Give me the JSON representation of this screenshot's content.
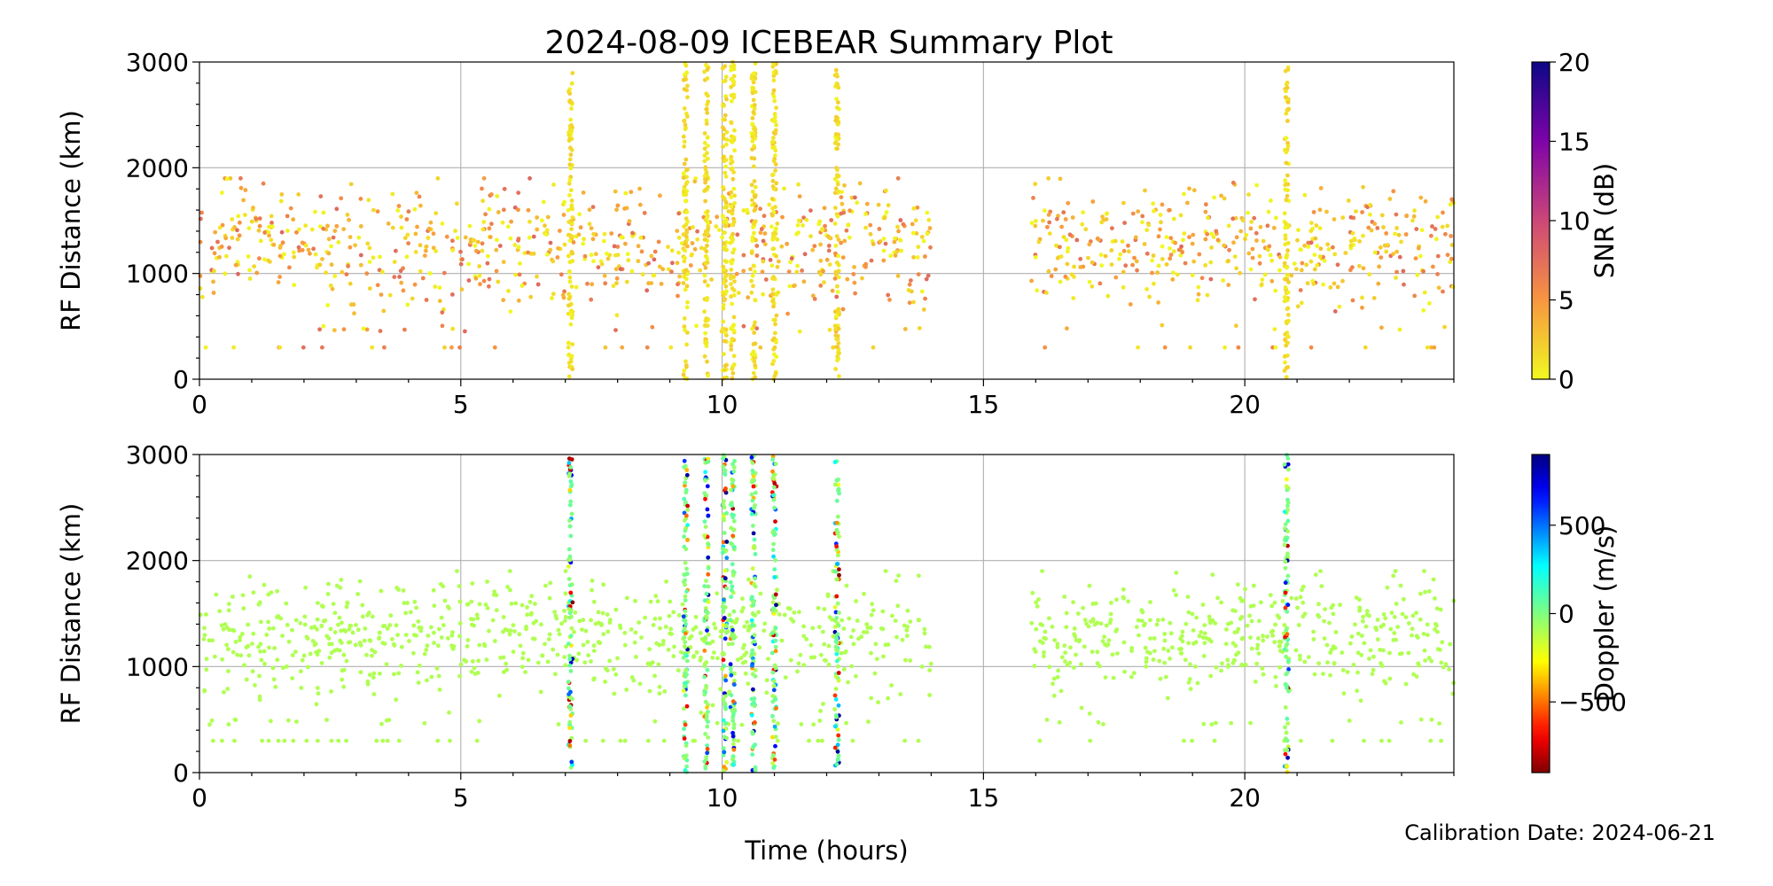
{
  "title": "2024-08-09 ICEBEAR Summary Plot",
  "calibration_note": "Calibration Date: 2024-06-21",
  "chart_data": [
    {
      "type": "scatter",
      "panel": "snr",
      "xlabel": "",
      "ylabel": "RF Distance (km)",
      "xlim": [
        0,
        24
      ],
      "ylim": [
        0,
        3000
      ],
      "xticks": [
        0,
        5,
        10,
        15,
        20
      ],
      "xtick_labels": [
        "0",
        "5",
        "10",
        "15",
        "20"
      ],
      "yticks": [
        0,
        1000,
        2000,
        3000
      ],
      "ytick_labels": [
        "0",
        "1000",
        "2000",
        "3000"
      ],
      "grid": true,
      "colorbar": {
        "label": "SNR (dB)",
        "range": [
          0,
          20
        ],
        "ticks": [
          0,
          5,
          10,
          15,
          20
        ],
        "tick_labels": [
          "0",
          "5",
          "10",
          "15",
          "20"
        ],
        "colormap": "plasma_r"
      },
      "activity_segments": [
        [
          0.0,
          14.0
        ],
        [
          15.9,
          24.0
        ]
      ],
      "background_range_km": [
        300,
        1900
      ],
      "vertical_streaks_hours": [
        7.1,
        9.3,
        9.7,
        10.05,
        10.2,
        10.6,
        11.0,
        12.2,
        20.8
      ],
      "point_color_value_range": [
        0,
        8
      ]
    },
    {
      "type": "scatter",
      "panel": "doppler",
      "xlabel": "Time (hours)",
      "ylabel": "RF Distance (km)",
      "xlim": [
        0,
        24
      ],
      "ylim": [
        0,
        3000
      ],
      "xticks": [
        0,
        5,
        10,
        15,
        20
      ],
      "xtick_labels": [
        "0",
        "5",
        "10",
        "15",
        "20"
      ],
      "yticks": [
        0,
        1000,
        2000,
        3000
      ],
      "ytick_labels": [
        "0",
        "1000",
        "2000",
        "3000"
      ],
      "grid": true,
      "colorbar": {
        "label": "Doppler (m/s)",
        "range": [
          -900,
          900
        ],
        "ticks": [
          -500,
          0,
          500
        ],
        "tick_labels": [
          "−500",
          "0",
          "500"
        ],
        "colormap": "jet_r"
      },
      "activity_segments": [
        [
          0.0,
          14.0
        ],
        [
          15.9,
          24.0
        ]
      ],
      "background_range_km": [
        300,
        1900
      ],
      "vertical_streaks_hours": [
        7.1,
        9.3,
        9.7,
        10.05,
        10.2,
        10.6,
        11.0,
        12.2,
        20.8
      ],
      "background_doppler_m_s": -100
    }
  ]
}
